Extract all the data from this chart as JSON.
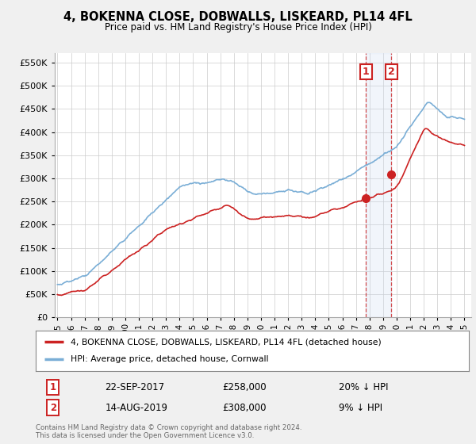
{
  "title": "4, BOKENNA CLOSE, DOBWALLS, LISKEARD, PL14 4FL",
  "subtitle": "Price paid vs. HM Land Registry's House Price Index (HPI)",
  "legend_line1": "4, BOKENNA CLOSE, DOBWALLS, LISKEARD, PL14 4FL (detached house)",
  "legend_line2": "HPI: Average price, detached house, Cornwall",
  "annotation1_date": "22-SEP-2017",
  "annotation1_price": "£258,000",
  "annotation1_hpi": "20% ↓ HPI",
  "annotation2_date": "14-AUG-2019",
  "annotation2_price": "£308,000",
  "annotation2_hpi": "9% ↓ HPI",
  "footer": "Contains HM Land Registry data © Crown copyright and database right 2024.\nThis data is licensed under the Open Government Licence v3.0.",
  "hpi_color": "#7aaed6",
  "price_color": "#cc2222",
  "annotation_color": "#cc2222",
  "ylim_max": 570000,
  "yticks": [
    0,
    50000,
    100000,
    150000,
    200000,
    250000,
    300000,
    350000,
    400000,
    450000,
    500000,
    550000
  ],
  "sale1_year": 2017.73,
  "sale1_price": 258000,
  "sale2_year": 2019.62,
  "sale2_price": 308000,
  "background_color": "#f0f0f0",
  "plot_background": "#ffffff",
  "grid_color": "#cccccc",
  "span_color": "#c8d8f0"
}
